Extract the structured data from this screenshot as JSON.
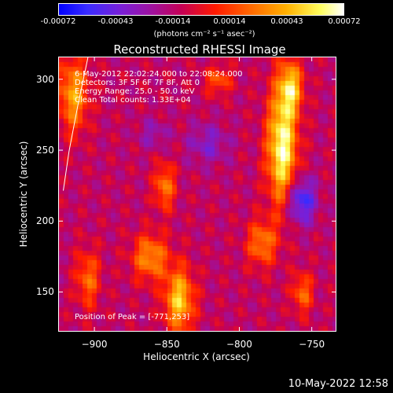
{
  "colorbar": {
    "ticks": [
      "-0.00072",
      "-0.00043",
      "-0.00014",
      "0.00014",
      "0.00043",
      "0.00072"
    ],
    "units": "(photons cm⁻² s⁻¹ asec⁻²)"
  },
  "annotations": {
    "line1": "6-May-2012 22:02:24.000 to 22:08:24.000",
    "line2": "Detectors: 3F 5F 6F 7F 8F, Att 0",
    "line3": "Energy Range: 25.0 - 50.0 keV",
    "line4": "Clean     Total counts: 1.33E+04",
    "peak": "Position of Peak = [-771,253]"
  },
  "timestamp": "10-May-2022 12:58",
  "chart_data": {
    "type": "heatmap",
    "title": "Reconstructed RHESSI Image",
    "xlabel": "Heliocentric X (arcsec)",
    "ylabel": "Heliocentric Y (arcsec)",
    "xlim": [
      -925,
      -733
    ],
    "ylim": [
      122,
      316
    ],
    "xticks": [
      -900,
      -850,
      -800,
      -750
    ],
    "yticks": [
      150,
      200,
      250,
      300
    ],
    "xtick_labels": [
      "−900",
      "−850",
      "−800",
      "−750"
    ],
    "ytick_labels": [
      "150",
      "200",
      "250",
      "300"
    ],
    "colorbar_range": [
      -0.00072,
      0.00072
    ],
    "grid": false,
    "peak": [
      -771,
      253
    ],
    "bright_regions": [
      {
        "x": -771,
        "y": 253,
        "rx": 10,
        "ry": 40,
        "value": 0.00068
      },
      {
        "x": -765,
        "y": 295,
        "rx": 8,
        "ry": 18,
        "value": 0.00045
      },
      {
        "x": -842,
        "y": 145,
        "rx": 10,
        "ry": 22,
        "value": 0.0005
      },
      {
        "x": -862,
        "y": 175,
        "rx": 12,
        "ry": 16,
        "value": 0.00035
      },
      {
        "x": -852,
        "y": 225,
        "rx": 7,
        "ry": 16,
        "value": 0.0003
      },
      {
        "x": -915,
        "y": 290,
        "rx": 10,
        "ry": 26,
        "value": 0.0004
      },
      {
        "x": -905,
        "y": 160,
        "rx": 8,
        "ry": 20,
        "value": 0.00025
      },
      {
        "x": -785,
        "y": 185,
        "rx": 10,
        "ry": 16,
        "value": 0.0003
      },
      {
        "x": -757,
        "y": 150,
        "rx": 7,
        "ry": 14,
        "value": 0.00025
      },
      {
        "x": -815,
        "y": 300,
        "rx": 9,
        "ry": 10,
        "value": 0.0002
      }
    ],
    "dark_regions": [
      {
        "x": -758,
        "y": 215,
        "rx": 10,
        "ry": 16,
        "value": -0.0006
      },
      {
        "x": -822,
        "y": 255,
        "rx": 14,
        "ry": 14,
        "value": -0.00035
      },
      {
        "x": -860,
        "y": 262,
        "rx": 10,
        "ry": 10,
        "value": -0.0003
      }
    ],
    "background_value": -0.00012,
    "limb_curve": [
      [
        -922,
        222
      ],
      [
        -918,
        250
      ],
      [
        -912,
        282
      ],
      [
        -905,
        316
      ]
    ]
  }
}
